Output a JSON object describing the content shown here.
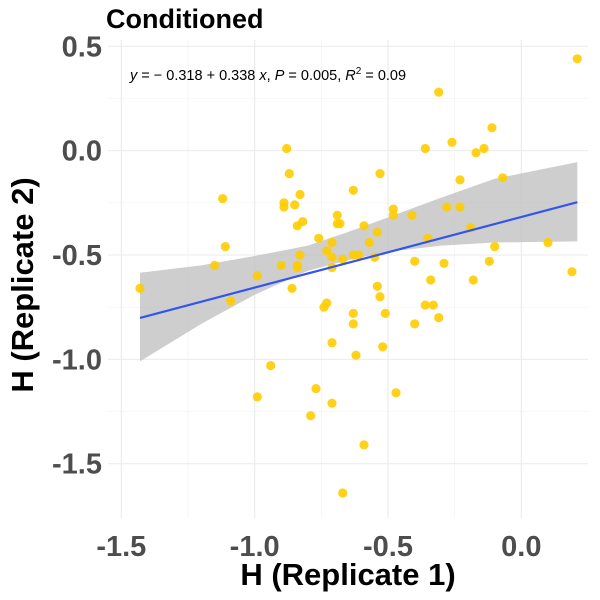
{
  "chart_data": {
    "type": "scatter",
    "title": "Conditioned",
    "xlabel": "H (Replicate 1)",
    "ylabel": "H (Replicate 2)",
    "xlim": [
      -1.55,
      0.25
    ],
    "ylim": [
      -1.76,
      0.53
    ],
    "x_ticks": [
      -1.5,
      -1.0,
      -0.5,
      0.0
    ],
    "x_tick_labels": [
      "-1.5",
      "-1.0",
      "-0.5",
      "0.0"
    ],
    "y_ticks": [
      -1.5,
      -1.0,
      -0.5,
      0.0,
      0.5
    ],
    "y_tick_labels": [
      "-1.5",
      "-1.0",
      "-0.5",
      "0.0",
      "0.5"
    ],
    "grid": true,
    "annotation": {
      "y_var": "y",
      "equals": " = ",
      "formula": "− 0.318 + 0.338",
      "x_var": "x",
      "sep": ", ",
      "p_var": "P",
      "p_value": " = 0.005, ",
      "r_var": "R",
      "r_exp": "2",
      "r_value": " = 0.09"
    },
    "point_color": "#FFCC00",
    "line_color": "#3355EE",
    "band_color": "#BEBEBE",
    "regression": {
      "intercept": -0.318,
      "slope": 0.338,
      "x_range": [
        -1.43,
        0.21
      ]
    },
    "confidence_band": [
      {
        "x": -1.43,
        "lower": -1.01,
        "upper": -0.585
      },
      {
        "x": -1.2,
        "lower": -0.83,
        "upper": -0.55
      },
      {
        "x": -1.0,
        "lower": -0.69,
        "upper": -0.505
      },
      {
        "x": -0.8,
        "lower": -0.575,
        "upper": -0.455
      },
      {
        "x": -0.65,
        "lower": -0.525,
        "upper": -0.39
      },
      {
        "x": -0.5,
        "lower": -0.485,
        "upper": -0.32
      },
      {
        "x": -0.3,
        "lower": -0.455,
        "upper": -0.225
      },
      {
        "x": -0.1,
        "lower": -0.44,
        "upper": -0.135
      },
      {
        "x": 0.21,
        "lower": -0.435,
        "upper": -0.055
      }
    ],
    "points": [
      {
        "x": 0.21,
        "y": 0.44
      },
      {
        "x": -0.31,
        "y": 0.28
      },
      {
        "x": -0.11,
        "y": 0.11
      },
      {
        "x": -0.26,
        "y": 0.04
      },
      {
        "x": -0.88,
        "y": 0.01
      },
      {
        "x": -0.36,
        "y": 0.01
      },
      {
        "x": -0.14,
        "y": 0.01
      },
      {
        "x": -0.17,
        "y": -0.01
      },
      {
        "x": -0.87,
        "y": -0.11
      },
      {
        "x": -0.53,
        "y": -0.11
      },
      {
        "x": -0.07,
        "y": -0.13
      },
      {
        "x": -0.23,
        "y": -0.14
      },
      {
        "x": -0.63,
        "y": -0.19
      },
      {
        "x": -0.83,
        "y": -0.21
      },
      {
        "x": -1.12,
        "y": -0.23
      },
      {
        "x": -0.89,
        "y": -0.25
      },
      {
        "x": -0.85,
        "y": -0.26
      },
      {
        "x": -0.89,
        "y": -0.27
      },
      {
        "x": -0.28,
        "y": -0.27
      },
      {
        "x": -0.23,
        "y": -0.27
      },
      {
        "x": -0.48,
        "y": -0.28
      },
      {
        "x": -0.48,
        "y": -0.31
      },
      {
        "x": -0.69,
        "y": -0.31
      },
      {
        "x": -0.41,
        "y": -0.31
      },
      {
        "x": -0.82,
        "y": -0.34
      },
      {
        "x": -0.69,
        "y": -0.35
      },
      {
        "x": -0.68,
        "y": -0.35
      },
      {
        "x": -0.84,
        "y": -0.36
      },
      {
        "x": -0.59,
        "y": -0.36
      },
      {
        "x": -0.19,
        "y": -0.37
      },
      {
        "x": -0.54,
        "y": -0.39
      },
      {
        "x": -0.76,
        "y": -0.42
      },
      {
        "x": -0.35,
        "y": -0.42
      },
      {
        "x": -0.71,
        "y": -0.44
      },
      {
        "x": -0.57,
        "y": -0.44
      },
      {
        "x": 0.1,
        "y": -0.44
      },
      {
        "x": -1.11,
        "y": -0.46
      },
      {
        "x": -0.1,
        "y": -0.46
      },
      {
        "x": -0.73,
        "y": -0.48
      },
      {
        "x": -0.83,
        "y": -0.5
      },
      {
        "x": -0.61,
        "y": -0.5
      },
      {
        "x": -0.63,
        "y": -0.5
      },
      {
        "x": -0.55,
        "y": -0.51
      },
      {
        "x": -0.71,
        "y": -0.51
      },
      {
        "x": -0.67,
        "y": -0.52
      },
      {
        "x": -0.12,
        "y": -0.53
      },
      {
        "x": -0.4,
        "y": -0.53
      },
      {
        "x": -0.29,
        "y": -0.54
      },
      {
        "x": -1.15,
        "y": -0.55
      },
      {
        "x": -0.84,
        "y": -0.55
      },
      {
        "x": -0.9,
        "y": -0.55
      },
      {
        "x": -0.71,
        "y": -0.56
      },
      {
        "x": -0.84,
        "y": -0.56
      },
      {
        "x": 0.19,
        "y": -0.58
      },
      {
        "x": -0.99,
        "y": -0.6
      },
      {
        "x": -0.18,
        "y": -0.62
      },
      {
        "x": -0.34,
        "y": -0.62
      },
      {
        "x": -0.54,
        "y": -0.65
      },
      {
        "x": -1.43,
        "y": -0.66
      },
      {
        "x": -0.86,
        "y": -0.66
      },
      {
        "x": -0.53,
        "y": -0.7
      },
      {
        "x": -1.09,
        "y": -0.72
      },
      {
        "x": -0.73,
        "y": -0.73
      },
      {
        "x": -0.36,
        "y": -0.74
      },
      {
        "x": -0.33,
        "y": -0.74
      },
      {
        "x": -0.74,
        "y": -0.75
      },
      {
        "x": -0.63,
        "y": -0.78
      },
      {
        "x": -0.51,
        "y": -0.78
      },
      {
        "x": -0.31,
        "y": -0.8
      },
      {
        "x": -0.4,
        "y": -0.83
      },
      {
        "x": -0.63,
        "y": -0.83
      },
      {
        "x": -0.71,
        "y": -0.92
      },
      {
        "x": -0.52,
        "y": -0.94
      },
      {
        "x": -0.62,
        "y": -0.98
      },
      {
        "x": -0.94,
        "y": -1.03
      },
      {
        "x": -0.77,
        "y": -1.14
      },
      {
        "x": -0.47,
        "y": -1.16
      },
      {
        "x": -0.99,
        "y": -1.18
      },
      {
        "x": -0.71,
        "y": -1.21
      },
      {
        "x": -0.79,
        "y": -1.27
      },
      {
        "x": -0.59,
        "y": -1.41
      },
      {
        "x": -0.67,
        "y": -1.64
      }
    ]
  }
}
